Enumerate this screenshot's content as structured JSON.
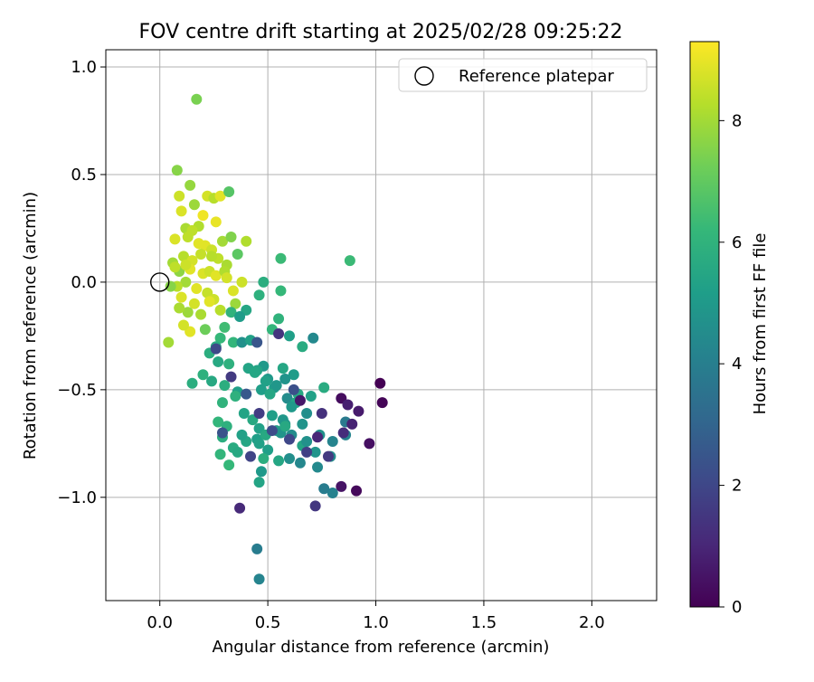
{
  "chart_data": {
    "type": "scatter",
    "title": "FOV centre drift starting at 2025/02/28 09:25:22",
    "xlabel": "Angular distance from reference (arcmin)",
    "ylabel": "Rotation from reference (arcmin)",
    "xlim": [
      -0.25,
      2.3
    ],
    "ylim": [
      -1.48,
      1.08
    ],
    "xticks": [
      0.0,
      0.5,
      1.0,
      1.5,
      2.0
    ],
    "xtick_labels": [
      "0.0",
      "0.5",
      "1.0",
      "1.5",
      "2.0"
    ],
    "yticks": [
      1.0,
      0.5,
      0.0,
      -0.5,
      -1.0
    ],
    "ytick_labels": [
      "1.0",
      "0.5",
      "0.0",
      "−0.5",
      "−1.0"
    ],
    "grid": true,
    "legend": {
      "placement": "top-right",
      "entries": [
        "Reference platepar"
      ]
    },
    "reference_point": {
      "x": 0.0,
      "y": 0.0,
      "label": "Reference platepar"
    },
    "colorbar": {
      "label": "Hours from first FF file",
      "range": [
        0,
        9.3
      ],
      "ticks": [
        0,
        2,
        4,
        6,
        8
      ],
      "tick_labels": [
        "0",
        "2",
        "4",
        "6",
        "8"
      ],
      "colormap": "viridis",
      "colors": [
        "#440154",
        "#482878",
        "#3e4989",
        "#31688e",
        "#26828e",
        "#1f9e89",
        "#35b779",
        "#6ece58",
        "#b5de2b",
        "#fde725"
      ]
    },
    "series": [
      {
        "x": [
          0.17,
          0.08,
          0.14,
          0.09,
          0.22,
          0.25,
          0.28,
          0.32,
          0.16,
          0.1,
          0.12,
          0.18,
          0.07,
          0.13,
          0.21,
          0.24,
          0.29,
          0.33,
          0.11,
          0.15,
          0.19,
          0.27,
          0.31,
          0.06,
          0.09,
          0.14,
          0.2,
          0.23,
          0.26,
          0.3,
          0.36,
          0.4,
          0.12,
          0.08,
          0.17,
          0.22,
          0.05,
          0.1,
          0.16,
          0.25,
          0.34,
          0.13,
          0.19,
          0.28,
          0.21,
          0.14,
          0.11,
          0.35,
          0.38,
          0.09,
          0.04,
          0.12,
          0.18,
          0.24,
          0.15,
          0.2,
          0.26,
          0.31,
          0.07,
          0.23
        ],
        "y": [
          0.85,
          0.52,
          0.45,
          0.4,
          0.4,
          0.39,
          0.4,
          0.42,
          0.36,
          0.33,
          0.25,
          0.26,
          0.2,
          0.21,
          0.17,
          0.15,
          0.19,
          0.21,
          0.12,
          0.1,
          0.13,
          0.11,
          0.08,
          0.09,
          0.05,
          0.06,
          0.04,
          0.05,
          0.03,
          0.05,
          0.13,
          0.19,
          0.0,
          -0.02,
          -0.03,
          -0.05,
          -0.02,
          -0.07,
          -0.1,
          -0.08,
          -0.04,
          -0.14,
          -0.15,
          -0.13,
          -0.22,
          -0.23,
          -0.2,
          -0.1,
          0.0,
          -0.12,
          -0.28,
          0.08,
          0.18,
          0.12,
          0.24,
          0.31,
          0.28,
          0.02,
          0.07,
          -0.09
        ],
        "hours": [
          7.4,
          7.6,
          7.8,
          8.6,
          8.7,
          8.3,
          8.9,
          6.8,
          7.9,
          8.8,
          8.1,
          8.2,
          8.8,
          8.4,
          8.9,
          8.6,
          8.0,
          7.5,
          8.3,
          8.7,
          8.5,
          8.4,
          8.1,
          8.0,
          7.7,
          8.9,
          8.8,
          8.6,
          8.9,
          8.2,
          6.9,
          8.2,
          8.0,
          8.3,
          8.9,
          8.5,
          7.6,
          8.8,
          8.7,
          8.6,
          8.8,
          7.9,
          8.1,
          8.3,
          7.2,
          8.9,
          8.7,
          7.9,
          8.6,
          8.1,
          8.0,
          8.6,
          8.9,
          8.3,
          8.4,
          9.1,
          9.0,
          8.7,
          8.4,
          8.9
        ]
      },
      {
        "x": [
          0.56,
          0.88,
          0.48,
          0.46,
          0.52,
          0.56,
          0.4,
          0.33,
          0.37,
          0.3,
          0.28,
          0.26,
          0.34,
          0.23,
          0.55,
          0.6,
          0.38,
          0.42,
          0.48,
          0.27,
          0.32,
          0.45,
          0.5,
          0.57,
          0.62,
          0.66,
          0.71,
          0.2,
          0.24,
          0.3,
          0.36,
          0.41,
          0.44,
          0.49,
          0.53,
          0.58,
          0.64,
          0.7,
          0.76,
          0.15,
          0.29,
          0.35,
          0.47,
          0.51,
          0.54,
          0.59,
          0.63,
          0.27,
          0.31,
          0.39,
          0.43,
          0.46,
          0.52,
          0.57,
          0.61,
          0.68,
          0.74,
          0.8,
          0.86,
          0.29,
          0.34,
          0.4,
          0.45,
          0.49,
          0.54,
          0.58,
          0.66,
          0.72,
          0.79,
          0.86,
          0.28,
          0.36,
          0.46,
          0.5,
          0.56,
          0.6,
          0.65,
          0.73,
          0.8,
          0.46,
          0.47,
          0.55,
          0.61,
          0.68,
          0.45,
          0.46,
          0.58,
          0.48,
          0.66,
          0.76,
          0.32,
          0.38
        ],
        "y": [
          0.11,
          0.1,
          0.0,
          -0.06,
          -0.22,
          -0.04,
          -0.13,
          -0.14,
          -0.16,
          -0.21,
          -0.26,
          -0.3,
          -0.28,
          -0.33,
          -0.17,
          -0.25,
          -0.28,
          -0.27,
          -0.39,
          -0.37,
          -0.38,
          -0.41,
          -0.45,
          -0.4,
          -0.43,
          -0.3,
          -0.26,
          -0.43,
          -0.46,
          -0.48,
          -0.51,
          -0.4,
          -0.42,
          -0.46,
          -0.49,
          -0.45,
          -0.52,
          -0.53,
          -0.49,
          -0.47,
          -0.56,
          -0.53,
          -0.5,
          -0.52,
          -0.48,
          -0.54,
          -0.56,
          -0.65,
          -0.67,
          -0.61,
          -0.64,
          -0.68,
          -0.62,
          -0.64,
          -0.58,
          -0.61,
          -0.71,
          -0.74,
          -0.65,
          -0.72,
          -0.77,
          -0.74,
          -0.73,
          -0.71,
          -0.69,
          -0.66,
          -0.76,
          -0.79,
          -0.81,
          -0.71,
          -0.8,
          -0.79,
          -0.75,
          -0.78,
          -0.7,
          -0.82,
          -0.84,
          -0.86,
          -0.98,
          -0.93,
          -0.88,
          -0.83,
          -0.71,
          -0.74,
          -1.24,
          -1.38,
          -0.67,
          -0.82,
          -0.66,
          -0.96,
          -0.85,
          -0.71
        ],
        "hours": [
          6.3,
          6.3,
          5.8,
          5.9,
          6.1,
          6.2,
          5.5,
          6.0,
          5.1,
          6.4,
          6.2,
          5.7,
          6.1,
          5.8,
          6.0,
          5.2,
          4.7,
          5.3,
          5.0,
          5.6,
          5.9,
          5.4,
          5.0,
          5.5,
          5.1,
          5.7,
          4.4,
          5.9,
          5.6,
          5.8,
          5.2,
          5.4,
          5.5,
          5.3,
          5.1,
          4.8,
          5.6,
          5.3,
          5.7,
          5.8,
          6.0,
          5.9,
          5.2,
          5.5,
          4.9,
          4.5,
          5.4,
          6.1,
          5.9,
          5.4,
          5.6,
          5.3,
          5.2,
          4.9,
          5.0,
          4.6,
          4.7,
          4.2,
          3.8,
          5.8,
          5.7,
          5.5,
          5.2,
          5.6,
          5.3,
          4.9,
          5.4,
          4.8,
          4.5,
          4.2,
          6.1,
          5.6,
          5.3,
          5.2,
          4.8,
          4.6,
          4.3,
          4.4,
          4.1,
          5.4,
          5.0,
          5.5,
          4.5,
          4.7,
          3.9,
          4.2,
          5.6,
          5.8,
          4.8,
          3.9,
          6.2,
          5.3
        ]
      },
      {
        "x": [
          0.55,
          0.65,
          0.73,
          0.78,
          0.84,
          0.87,
          0.92,
          1.02,
          1.03,
          0.97,
          0.85,
          0.89,
          0.75,
          0.68,
          0.72,
          0.84,
          0.91,
          0.6,
          0.52,
          0.46,
          0.42,
          0.37,
          0.33,
          0.29,
          0.26,
          0.45,
          0.4,
          0.62
        ],
        "y": [
          -0.24,
          -0.55,
          -0.72,
          -0.81,
          -0.54,
          -0.57,
          -0.6,
          -0.47,
          -0.56,
          -0.75,
          -0.7,
          -0.66,
          -0.61,
          -0.79,
          -1.04,
          -0.95,
          -0.97,
          -0.73,
          -0.69,
          -0.61,
          -0.81,
          -1.05,
          -0.44,
          -0.7,
          -0.31,
          -0.28,
          -0.52,
          -0.5
        ],
        "hours": [
          1.4,
          0.6,
          1.0,
          1.6,
          0.3,
          0.8,
          0.7,
          0.0,
          0.1,
          0.4,
          1.2,
          0.9,
          1.3,
          1.8,
          1.5,
          0.5,
          0.2,
          2.0,
          2.2,
          1.7,
          1.9,
          1.1,
          1.6,
          2.4,
          2.1,
          2.5,
          2.6,
          2.3
        ]
      }
    ]
  }
}
